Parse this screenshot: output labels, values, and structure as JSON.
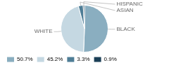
{
  "chart_data": {
    "type": "pie",
    "categories": [
      "BLACK",
      "WHITE",
      "ASIAN",
      "HISPANIC"
    ],
    "values": [
      50.7,
      45.2,
      3.3,
      0.9
    ],
    "value_labels": [
      "50.7%",
      "45.2%",
      "3.3%",
      "0.9%"
    ],
    "colors": [
      "#8aaec0",
      "#c5d8e2",
      "#4e7d96",
      "#1b3f56"
    ],
    "legend": "lower left"
  }
}
